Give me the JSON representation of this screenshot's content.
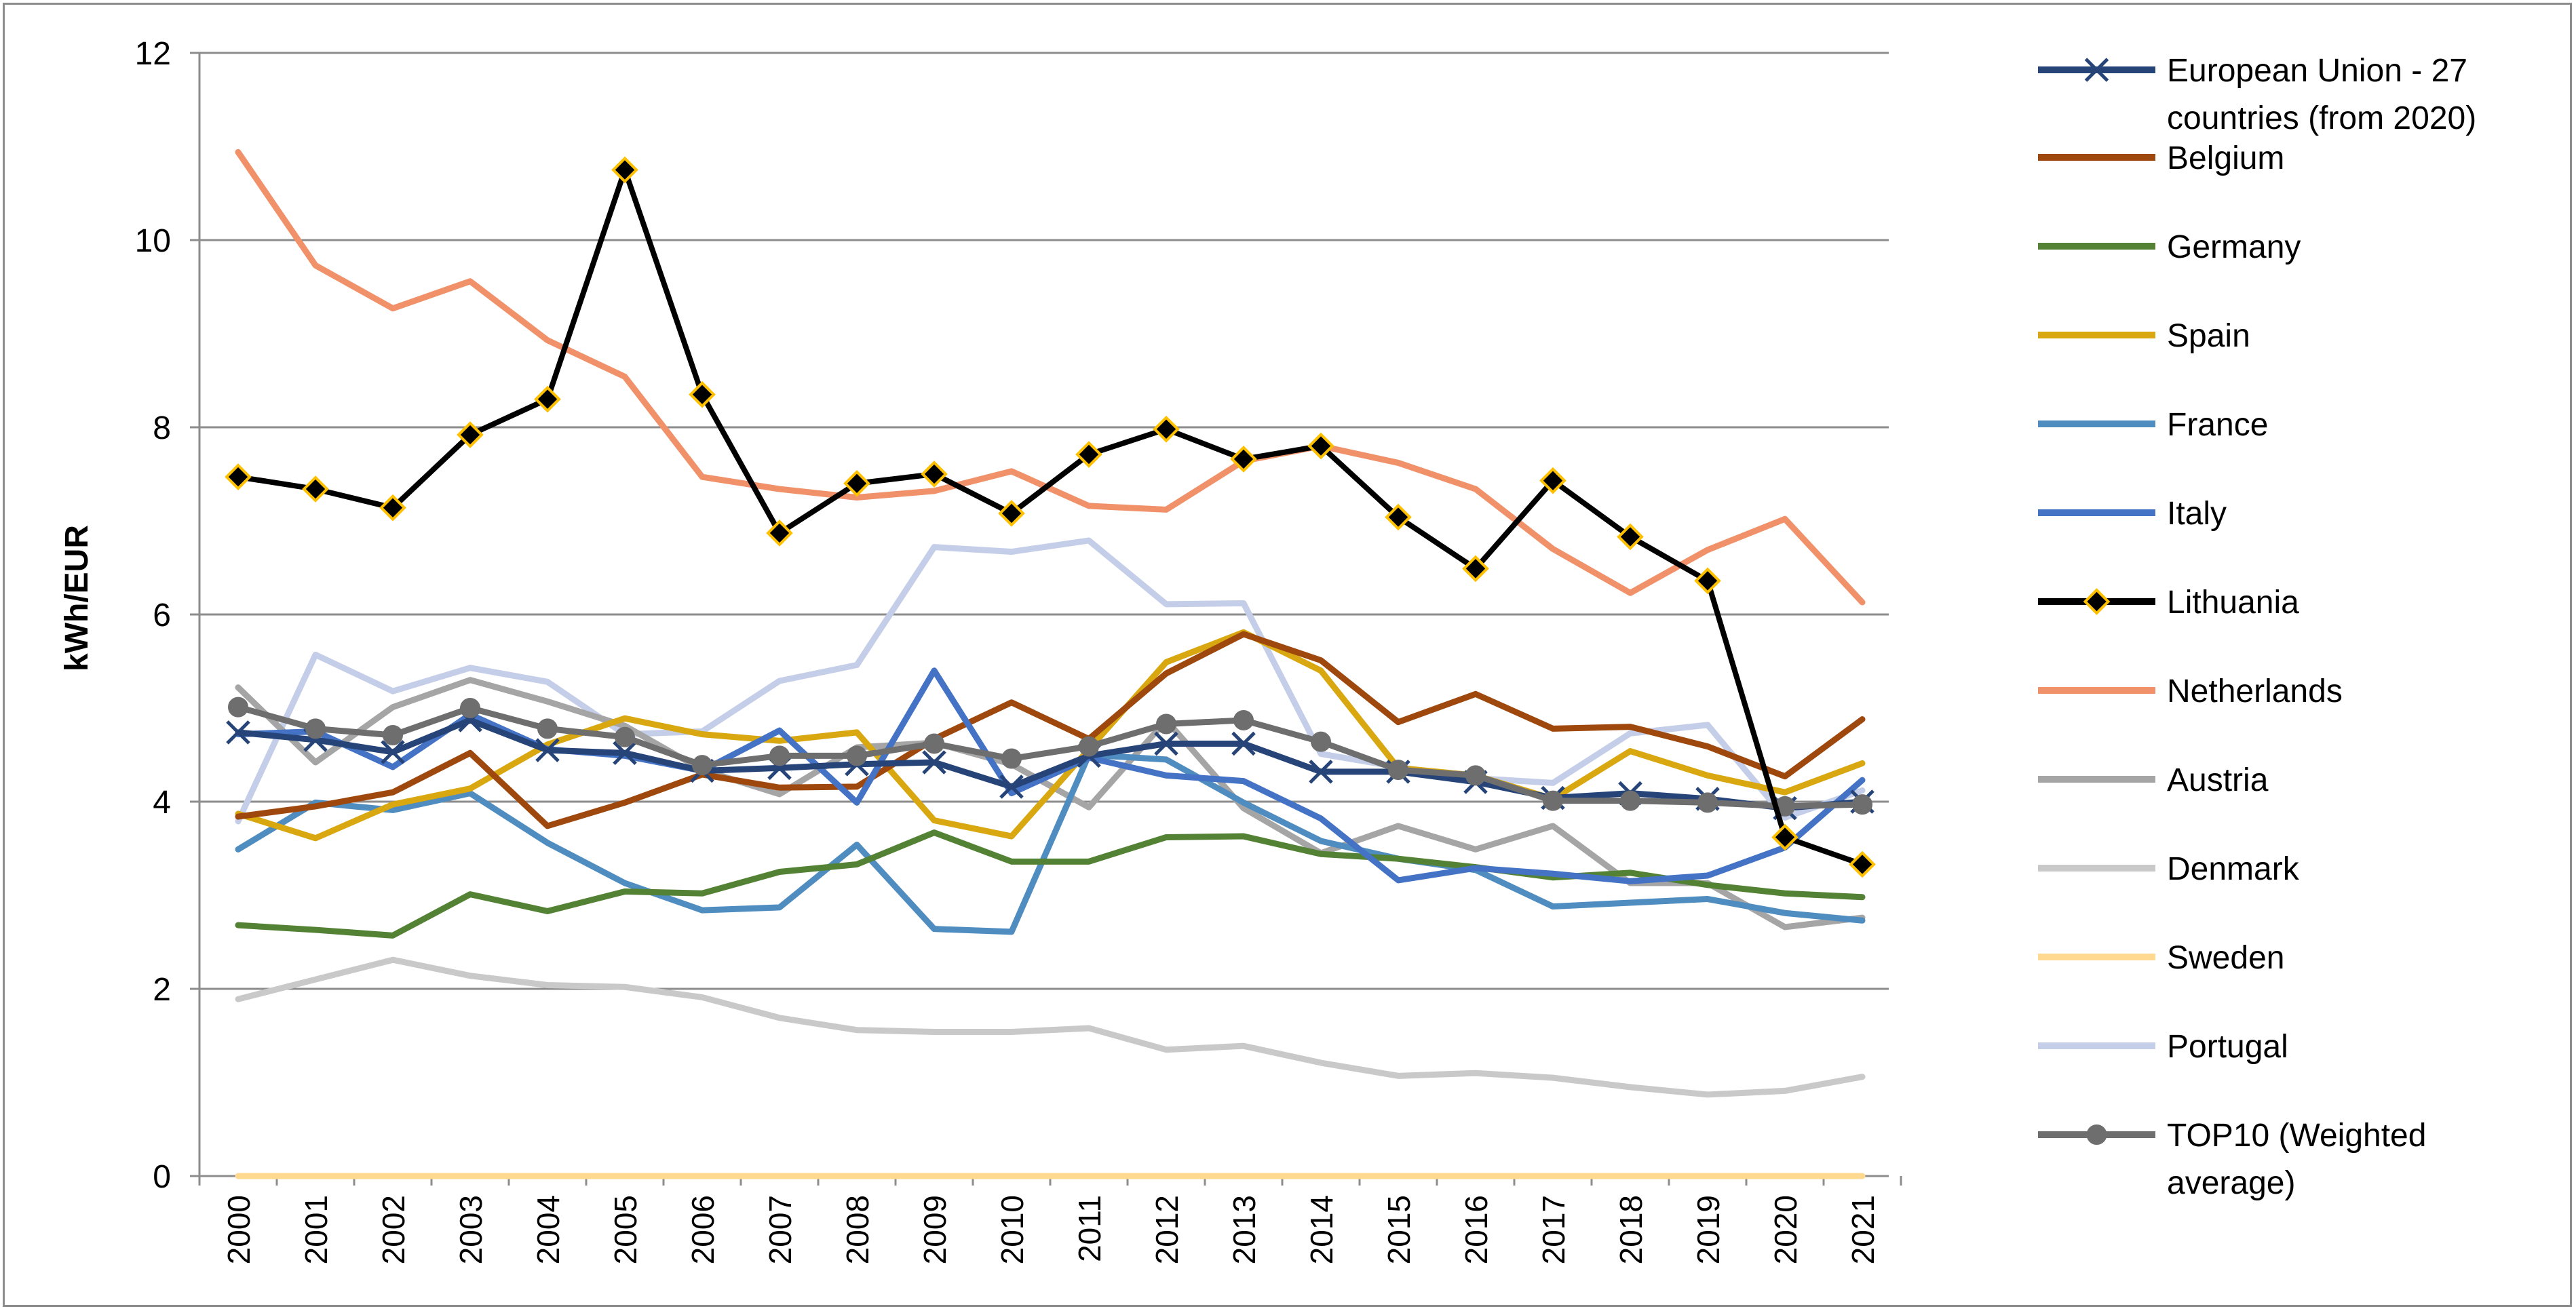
{
  "chart_data": {
    "type": "line",
    "title": "",
    "xlabel": "",
    "ylabel": "kWh/EUR",
    "ylim": [
      0,
      12
    ],
    "yticks": [
      "0",
      "2",
      "4",
      "6",
      "8",
      "10",
      "12"
    ],
    "ytick_values": [
      0,
      2,
      4,
      6,
      8,
      10,
      12
    ],
    "grid": true,
    "legend_position": "right",
    "categories": [
      "2000",
      "2001",
      "2002",
      "2003",
      "2004",
      "2005",
      "2006",
      "2007",
      "2008",
      "2009",
      "2010",
      "2011",
      "2012",
      "2013",
      "2014",
      "2015",
      "2016",
      "2017",
      "2018",
      "2019",
      "2020",
      "2021"
    ],
    "series": [
      {
        "name": "European Union - 27 countries (from 2020)",
        "legend_lines": [
          "European Union - 27",
          "countries (from 2020)"
        ],
        "color": "#264478",
        "marker": "x",
        "values": [
          4.74,
          4.66,
          4.53,
          4.87,
          4.55,
          4.52,
          4.33,
          4.36,
          4.4,
          4.42,
          4.16,
          4.49,
          4.62,
          4.62,
          4.32,
          4.32,
          4.21,
          4.04,
          4.09,
          4.03,
          3.93,
          4.0
        ]
      },
      {
        "name": "Belgium",
        "legend_lines": [
          "Belgium"
        ],
        "color": "#9E480E",
        "marker": "none",
        "values": [
          3.84,
          3.95,
          4.1,
          4.52,
          3.74,
          3.99,
          4.29,
          4.15,
          4.16,
          4.67,
          5.06,
          4.67,
          5.37,
          5.79,
          5.51,
          4.85,
          5.15,
          4.78,
          4.8,
          4.59,
          4.27,
          4.88
        ]
      },
      {
        "name": "Germany",
        "legend_lines": [
          "Germany"
        ],
        "color": "#548235",
        "marker": "none",
        "values": [
          2.68,
          2.63,
          2.57,
          3.01,
          2.83,
          3.04,
          3.02,
          3.25,
          3.33,
          3.67,
          3.36,
          3.36,
          3.62,
          3.63,
          3.44,
          3.39,
          3.3,
          3.19,
          3.24,
          3.11,
          3.02,
          2.98
        ]
      },
      {
        "name": "Spain",
        "legend_lines": [
          "Spain"
        ],
        "color": "#D9A70F",
        "marker": "none",
        "values": [
          3.87,
          3.61,
          3.97,
          4.14,
          4.61,
          4.89,
          4.72,
          4.65,
          4.74,
          3.8,
          3.63,
          4.56,
          5.49,
          5.81,
          5.4,
          4.36,
          4.28,
          4.03,
          4.54,
          4.28,
          4.1,
          4.41
        ]
      },
      {
        "name": "France",
        "legend_lines": [
          "France"
        ],
        "color": "#4F8CC0",
        "marker": "none",
        "values": [
          3.49,
          3.99,
          3.91,
          4.09,
          3.56,
          3.13,
          2.84,
          2.87,
          3.54,
          2.64,
          2.61,
          4.5,
          4.45,
          3.99,
          3.58,
          3.39,
          3.27,
          2.88,
          2.92,
          2.96,
          2.81,
          2.73
        ]
      },
      {
        "name": "Italy",
        "legend_lines": [
          "Italy"
        ],
        "color": "#4472C4",
        "marker": "none",
        "values": [
          4.72,
          4.75,
          4.37,
          4.93,
          4.56,
          4.49,
          4.33,
          4.76,
          3.99,
          5.4,
          4.09,
          4.47,
          4.28,
          4.22,
          3.82,
          3.16,
          3.29,
          3.23,
          3.15,
          3.21,
          3.51,
          4.23
        ]
      },
      {
        "name": "Lithuania",
        "legend_lines": [
          "Lithuania"
        ],
        "color": "#000000",
        "marker": "diamond",
        "values": [
          7.47,
          7.34,
          7.14,
          7.92,
          8.3,
          10.75,
          8.35,
          6.87,
          7.4,
          7.5,
          7.08,
          7.71,
          7.98,
          7.66,
          7.8,
          7.04,
          6.49,
          7.43,
          6.83,
          6.36,
          3.62,
          3.33
        ]
      },
      {
        "name": "Netherlands",
        "legend_lines": [
          "Netherlands"
        ],
        "color": "#F0916A",
        "marker": "none",
        "values": [
          10.94,
          9.73,
          9.27,
          9.56,
          8.93,
          8.54,
          7.47,
          7.34,
          7.25,
          7.32,
          7.53,
          7.16,
          7.12,
          7.64,
          7.8,
          7.62,
          7.34,
          6.7,
          6.23,
          6.69,
          7.02,
          6.13
        ]
      },
      {
        "name": "Austria",
        "legend_lines": [
          "Austria"
        ],
        "color": "#A5A5A5",
        "marker": "none",
        "values": [
          5.22,
          4.42,
          5.01,
          5.3,
          5.07,
          4.81,
          4.34,
          4.08,
          4.58,
          4.63,
          4.4,
          3.94,
          4.87,
          3.93,
          3.45,
          3.74,
          3.49,
          3.74,
          3.13,
          3.13,
          2.66,
          2.76
        ]
      },
      {
        "name": "Denmark",
        "legend_lines": [
          "Denmark"
        ],
        "color": "#C9C9C9",
        "marker": "none",
        "values": [
          1.89,
          2.1,
          2.31,
          2.14,
          2.04,
          2.02,
          1.91,
          1.69,
          1.56,
          1.54,
          1.54,
          1.58,
          1.35,
          1.39,
          1.21,
          1.07,
          1.1,
          1.05,
          0.95,
          0.87,
          0.91,
          1.06
        ]
      },
      {
        "name": "Sweden",
        "legend_lines": [
          "Sweden"
        ],
        "color": "#FFD98F",
        "marker": "none",
        "values": [
          0,
          0,
          0,
          0,
          0,
          0,
          0,
          0,
          0,
          0,
          0,
          0,
          0,
          0,
          0,
          0,
          0,
          0,
          0,
          0,
          0,
          0
        ]
      },
      {
        "name": "Portugal",
        "legend_lines": [
          "Portugal"
        ],
        "color": "#C5CEE8",
        "marker": "none",
        "values": [
          3.79,
          5.57,
          5.18,
          5.43,
          5.28,
          4.72,
          4.75,
          5.29,
          5.46,
          6.72,
          6.67,
          6.79,
          6.11,
          6.12,
          4.51,
          4.37,
          4.25,
          4.2,
          4.73,
          4.82,
          3.83,
          4.12
        ]
      },
      {
        "name": "TOP10 (Weighted average)",
        "legend_lines": [
          "TOP10 (Weighted",
          "average)"
        ],
        "color": "#6E6E6E",
        "marker": "circle",
        "values": [
          5.01,
          4.78,
          4.71,
          5.0,
          4.78,
          4.69,
          4.39,
          4.49,
          4.49,
          4.62,
          4.46,
          4.59,
          4.83,
          4.87,
          4.64,
          4.34,
          4.28,
          4.01,
          4.01,
          3.99,
          3.95,
          3.97
        ]
      }
    ]
  }
}
